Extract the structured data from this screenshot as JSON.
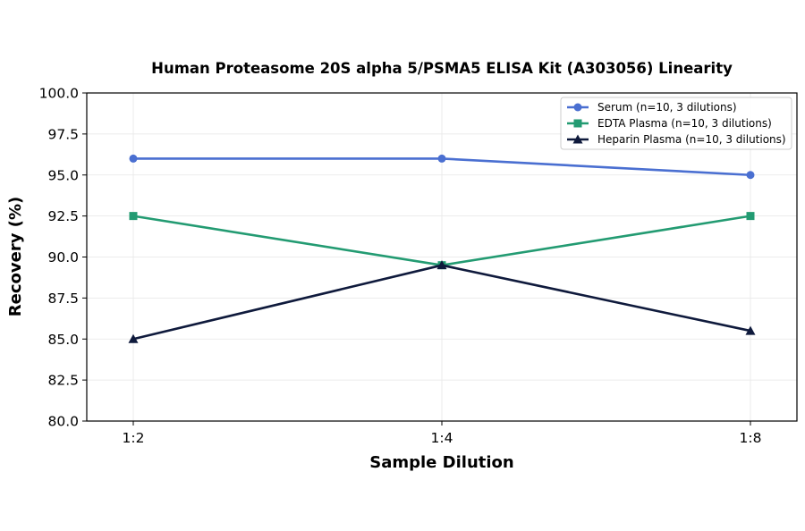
{
  "chart_data": {
    "type": "line",
    "title": "Human Proteasome 20S alpha 5/PSMA5 ELISA Kit (A303056) Linearity",
    "xlabel": "Sample Dilution",
    "ylabel": "Recovery (%)",
    "categories": [
      "1:2",
      "1:4",
      "1:8"
    ],
    "ylim": [
      80.0,
      100.0
    ],
    "yticks": [
      "80.0",
      "82.5",
      "85.0",
      "87.5",
      "90.0",
      "92.5",
      "95.0",
      "97.5",
      "100.0"
    ],
    "grid": true,
    "legend_position": "top-right",
    "series": [
      {
        "name": "Serum (n=10, 3 dilutions)",
        "values": [
          96.0,
          96.0,
          95.0
        ],
        "color": "#4a6fd1",
        "marker": "circle"
      },
      {
        "name": "EDTA Plasma (n=10, 3 dilutions)",
        "values": [
          92.5,
          89.5,
          92.5
        ],
        "color": "#239b72",
        "marker": "square"
      },
      {
        "name": "Heparin Plasma (n=10, 3 dilutions)",
        "values": [
          85.0,
          89.5,
          85.5
        ],
        "color": "#0f1a3c",
        "marker": "triangle"
      }
    ]
  }
}
